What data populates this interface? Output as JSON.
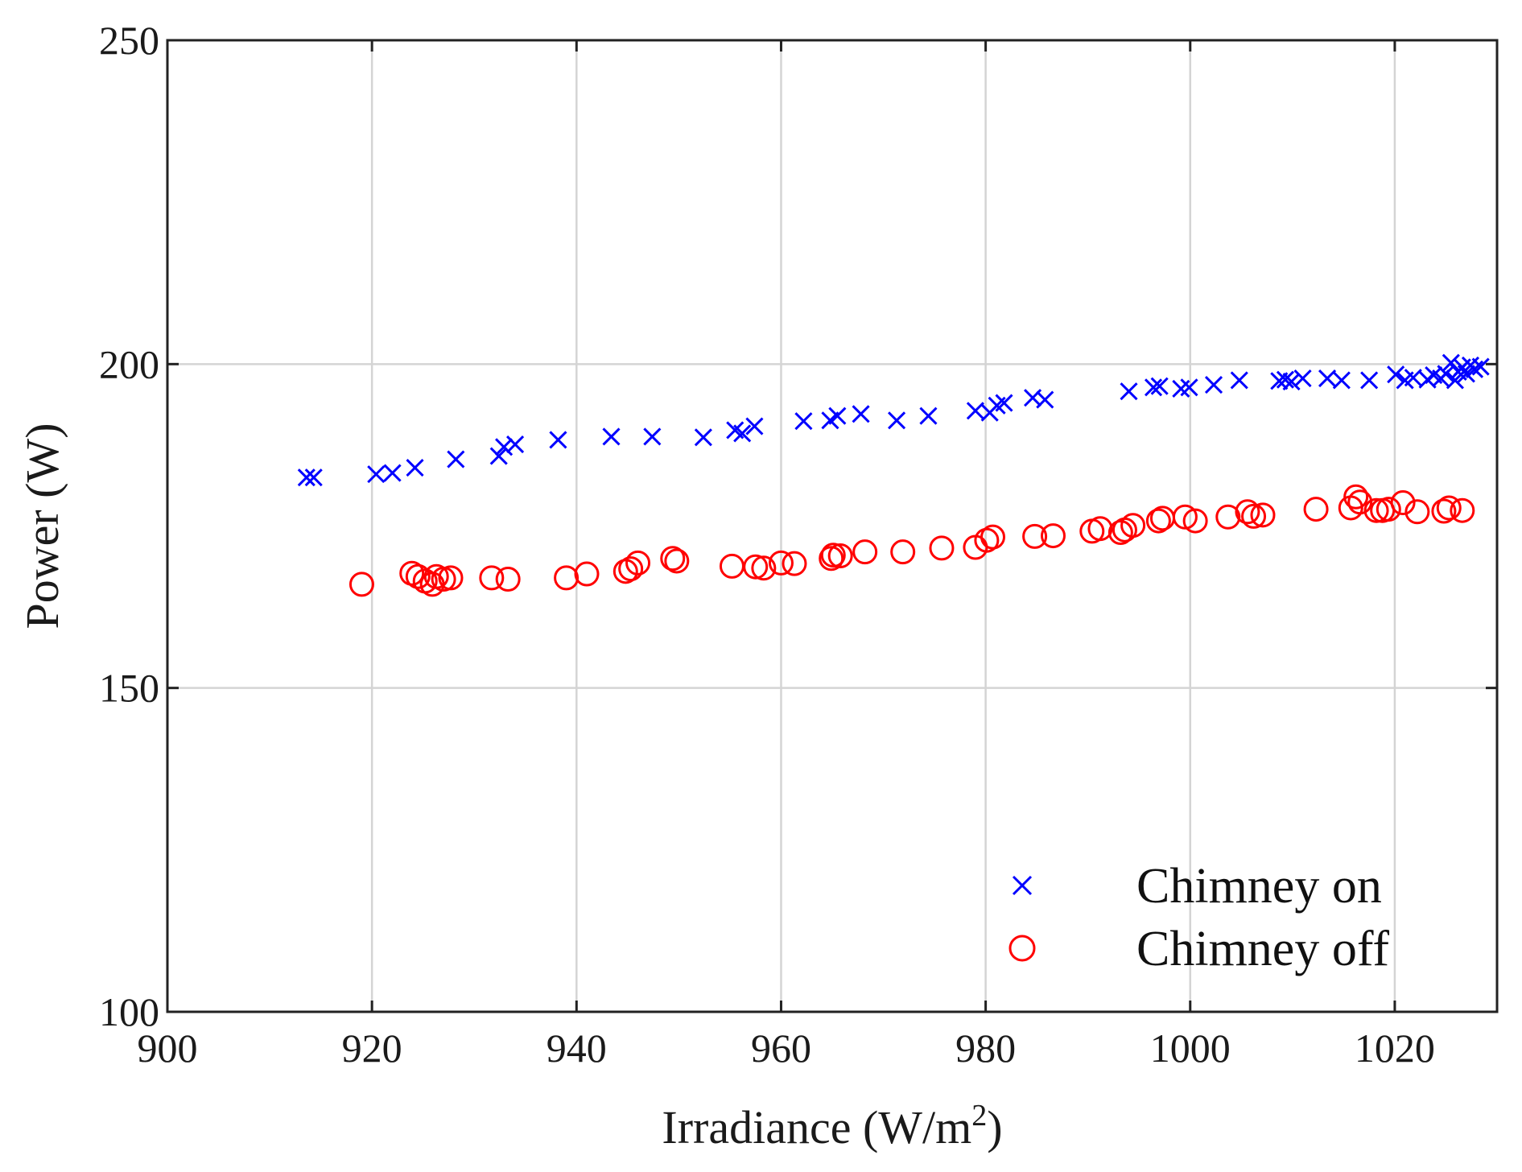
{
  "chart_data": {
    "type": "scatter",
    "xlabel": "Irradiance (W/m",
    "xlabel_sup": "2",
    "xlabel_suffix": ")",
    "ylabel": "Power (W)",
    "xlim": [
      900,
      1030
    ],
    "ylim": [
      100,
      250
    ],
    "xticks": [
      900,
      920,
      940,
      960,
      980,
      1000,
      1020
    ],
    "yticks": [
      100,
      150,
      200,
      250
    ],
    "grid": true,
    "legend_position": "bottom-right",
    "series": [
      {
        "name": "Chimney on",
        "marker": "x",
        "color": "#0000ff",
        "points": [
          [
            913.6,
            182.5
          ],
          [
            914.3,
            182.5
          ],
          [
            920.4,
            183.0
          ],
          [
            922.0,
            183.2
          ],
          [
            924.2,
            184.0
          ],
          [
            928.2,
            185.3
          ],
          [
            932.4,
            185.8
          ],
          [
            932.9,
            187.2
          ],
          [
            934.0,
            187.6
          ],
          [
            938.2,
            188.3
          ],
          [
            943.4,
            188.8
          ],
          [
            947.4,
            188.8
          ],
          [
            952.4,
            188.7
          ],
          [
            955.5,
            189.8
          ],
          [
            956.2,
            189.3
          ],
          [
            957.4,
            190.4
          ],
          [
            962.2,
            191.2
          ],
          [
            964.8,
            191.3
          ],
          [
            965.5,
            192.0
          ],
          [
            967.8,
            192.3
          ],
          [
            971.3,
            191.3
          ],
          [
            974.4,
            192.0
          ],
          [
            979.0,
            192.8
          ],
          [
            980.4,
            192.5
          ],
          [
            981.1,
            193.6
          ],
          [
            981.8,
            194.0
          ],
          [
            984.6,
            194.8
          ],
          [
            985.8,
            194.5
          ],
          [
            994.0,
            195.8
          ],
          [
            996.4,
            196.4
          ],
          [
            997.0,
            196.6
          ],
          [
            999.1,
            196.2
          ],
          [
            999.9,
            196.4
          ],
          [
            1002.3,
            196.8
          ],
          [
            1004.8,
            197.5
          ],
          [
            1008.7,
            197.4
          ],
          [
            1009.3,
            197.6
          ],
          [
            1009.9,
            197.3
          ],
          [
            1011.0,
            197.8
          ],
          [
            1013.4,
            197.8
          ],
          [
            1014.8,
            197.5
          ],
          [
            1017.5,
            197.5
          ],
          [
            1020.1,
            198.4
          ],
          [
            1021.0,
            197.5
          ],
          [
            1021.8,
            197.9
          ],
          [
            1023.2,
            197.6
          ],
          [
            1023.8,
            198.3
          ],
          [
            1024.5,
            197.8
          ],
          [
            1025.0,
            198.5
          ],
          [
            1025.5,
            200.2
          ],
          [
            1025.9,
            197.5
          ],
          [
            1026.2,
            198.8
          ],
          [
            1026.6,
            199.5
          ],
          [
            1027.0,
            198.5
          ],
          [
            1027.4,
            199.8
          ],
          [
            1027.8,
            199.2
          ],
          [
            1028.4,
            199.6
          ]
        ]
      },
      {
        "name": "Chimney off",
        "marker": "o",
        "color": "#ff0000",
        "points": [
          [
            919.0,
            166.0
          ],
          [
            923.9,
            167.7
          ],
          [
            924.5,
            167.2
          ],
          [
            925.2,
            166.5
          ],
          [
            925.9,
            166.0
          ],
          [
            926.3,
            167.2
          ],
          [
            927.0,
            166.8
          ],
          [
            927.7,
            167.0
          ],
          [
            931.7,
            167.0
          ],
          [
            933.3,
            166.8
          ],
          [
            939.0,
            167.0
          ],
          [
            941.0,
            167.6
          ],
          [
            944.8,
            168.0
          ],
          [
            945.3,
            168.4
          ],
          [
            946.0,
            169.3
          ],
          [
            949.4,
            170.0
          ],
          [
            949.8,
            169.6
          ],
          [
            955.2,
            168.8
          ],
          [
            957.5,
            168.7
          ],
          [
            958.3,
            168.5
          ],
          [
            960.0,
            169.3
          ],
          [
            961.3,
            169.2
          ],
          [
            964.9,
            170.0
          ],
          [
            965.1,
            170.5
          ],
          [
            965.8,
            170.4
          ],
          [
            968.2,
            171.0
          ],
          [
            971.9,
            171.0
          ],
          [
            975.7,
            171.6
          ],
          [
            979.0,
            171.7
          ],
          [
            980.1,
            172.8
          ],
          [
            980.7,
            173.3
          ],
          [
            984.8,
            173.4
          ],
          [
            986.6,
            173.5
          ],
          [
            990.4,
            174.2
          ],
          [
            991.2,
            174.6
          ],
          [
            993.2,
            174.0
          ],
          [
            993.6,
            174.4
          ],
          [
            994.4,
            175.1
          ],
          [
            996.9,
            175.8
          ],
          [
            997.3,
            176.2
          ],
          [
            999.5,
            176.4
          ],
          [
            1000.5,
            175.8
          ],
          [
            1003.7,
            176.4
          ],
          [
            1005.6,
            177.2
          ],
          [
            1006.2,
            176.5
          ],
          [
            1007.1,
            176.7
          ],
          [
            1012.3,
            177.6
          ],
          [
            1015.7,
            177.8
          ],
          [
            1016.2,
            179.5
          ],
          [
            1016.6,
            178.7
          ],
          [
            1018.2,
            177.4
          ],
          [
            1018.8,
            177.4
          ],
          [
            1019.4,
            177.6
          ],
          [
            1020.8,
            178.6
          ],
          [
            1022.2,
            177.2
          ],
          [
            1024.8,
            177.3
          ],
          [
            1025.3,
            177.8
          ],
          [
            1026.6,
            177.4
          ]
        ]
      }
    ]
  }
}
